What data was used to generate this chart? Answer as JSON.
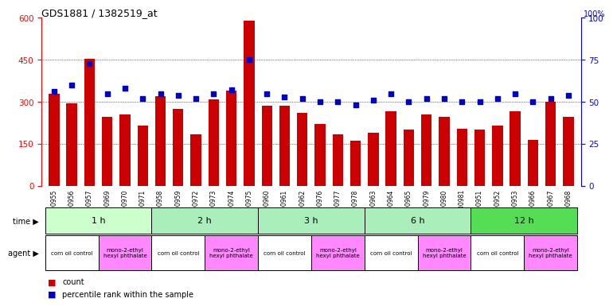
{
  "title": "GDS1881 / 1382519_at",
  "samples": [
    "GSM100955",
    "GSM100956",
    "GSM100957",
    "GSM100969",
    "GSM100970",
    "GSM100971",
    "GSM100958",
    "GSM100959",
    "GSM100972",
    "GSM100973",
    "GSM100974",
    "GSM100975",
    "GSM100960",
    "GSM100961",
    "GSM100962",
    "GSM100976",
    "GSM100977",
    "GSM100978",
    "GSM100963",
    "GSM100964",
    "GSM100965",
    "GSM100979",
    "GSM100980",
    "GSM100981",
    "GSM100951",
    "GSM100952",
    "GSM100953",
    "GSM100966",
    "GSM100967",
    "GSM100968"
  ],
  "counts": [
    330,
    295,
    455,
    245,
    255,
    215,
    320,
    275,
    185,
    310,
    340,
    590,
    285,
    285,
    260,
    220,
    185,
    160,
    190,
    265,
    200,
    255,
    245,
    205,
    200,
    215,
    265,
    165,
    300,
    245
  ],
  "percentiles": [
    56,
    60,
    73,
    55,
    58,
    52,
    55,
    54,
    52,
    55,
    57,
    75,
    55,
    53,
    52,
    50,
    50,
    48,
    51,
    55,
    50,
    52,
    52,
    50,
    50,
    52,
    55,
    50,
    52,
    54
  ],
  "bar_color": "#cc0000",
  "dot_color": "#0000cc",
  "ylim_left": [
    0,
    600
  ],
  "ylim_right": [
    0,
    100
  ],
  "yticks_left": [
    0,
    150,
    300,
    450,
    600
  ],
  "yticks_right": [
    0,
    25,
    50,
    75,
    100
  ],
  "time_groups": [
    {
      "label": "1 h",
      "start": 0,
      "end": 6,
      "color": "#ccffcc"
    },
    {
      "label": "2 h",
      "start": 6,
      "end": 12,
      "color": "#aaeebb"
    },
    {
      "label": "3 h",
      "start": 12,
      "end": 18,
      "color": "#aaeebb"
    },
    {
      "label": "6 h",
      "start": 18,
      "end": 24,
      "color": "#aaeebb"
    },
    {
      "label": "12 h",
      "start": 24,
      "end": 30,
      "color": "#55dd55"
    }
  ],
  "agent_groups": [
    {
      "label": "corn oil control",
      "start": 0,
      "end": 3,
      "color": "#ffffff"
    },
    {
      "label": "mono-2-ethyl\nhexyl phthalate",
      "start": 3,
      "end": 6,
      "color": "#ff88ff"
    },
    {
      "label": "corn oil control",
      "start": 6,
      "end": 9,
      "color": "#ffffff"
    },
    {
      "label": "mono-2-ethyl\nhexyl phthalate",
      "start": 9,
      "end": 12,
      "color": "#ff88ff"
    },
    {
      "label": "corn oil control",
      "start": 12,
      "end": 15,
      "color": "#ffffff"
    },
    {
      "label": "mono-2-ethyl\nhexyl phthalate",
      "start": 15,
      "end": 18,
      "color": "#ff88ff"
    },
    {
      "label": "corn oil control",
      "start": 18,
      "end": 21,
      "color": "#ffffff"
    },
    {
      "label": "mono-2-ethyl\nhexyl phthalate",
      "start": 21,
      "end": 24,
      "color": "#ff88ff"
    },
    {
      "label": "corn oil control",
      "start": 24,
      "end": 27,
      "color": "#ffffff"
    },
    {
      "label": "mono-2-ethyl\nhexyl phthalate",
      "start": 27,
      "end": 30,
      "color": "#ff88ff"
    }
  ],
  "legend_items": [
    {
      "label": "count",
      "color": "#cc0000"
    },
    {
      "label": "percentile rank within the sample",
      "color": "#0000cc"
    }
  ]
}
